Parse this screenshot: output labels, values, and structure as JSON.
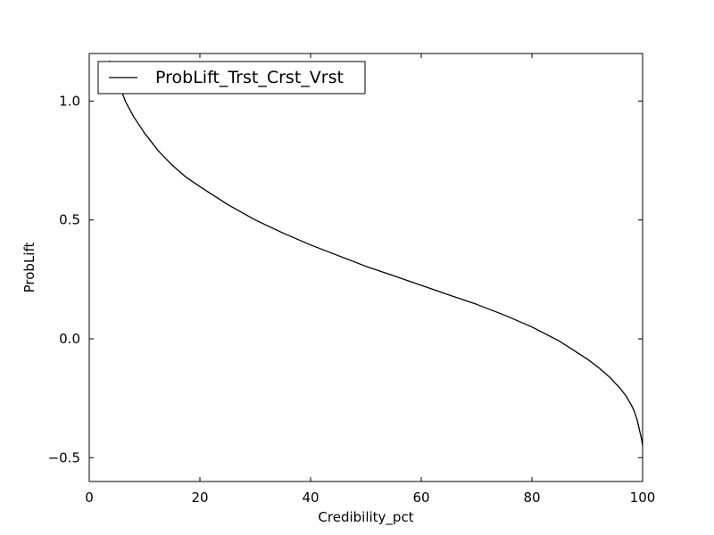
{
  "chart_data": {
    "type": "line",
    "title": "",
    "xlabel": "Credibility_pct",
    "ylabel": "ProbLift",
    "xlim": [
      0,
      100
    ],
    "ylim": [
      -0.6,
      1.2
    ],
    "xticks": [
      0,
      20,
      40,
      60,
      80,
      100
    ],
    "yticks": [
      -0.5,
      0.0,
      0.5,
      1.0
    ],
    "xtick_labels": [
      "0",
      "20",
      "40",
      "60",
      "80",
      "100"
    ],
    "ytick_labels": [
      "−0.5",
      "0.0",
      "0.5",
      "1.0"
    ],
    "grid": false,
    "legend_position": "top-left",
    "series": [
      {
        "name": "ProbLift_Trst_Crst_Vrst",
        "color": "#000000",
        "x": [
          3.7,
          4.5,
          5.5,
          6.5,
          8,
          10,
          12.5,
          15,
          17.5,
          20,
          25,
          30,
          35,
          40,
          45,
          50,
          55,
          60,
          65,
          70,
          75,
          80,
          85,
          88,
          90,
          92,
          94,
          95,
          96,
          97,
          98,
          98.5,
          99,
          99.3,
          99.6,
          99.8,
          100
        ],
        "y": [
          1.17,
          1.12,
          1.065,
          1.0,
          0.935,
          0.865,
          0.79,
          0.73,
          0.68,
          0.64,
          0.565,
          0.5,
          0.445,
          0.395,
          0.35,
          0.305,
          0.265,
          0.225,
          0.185,
          0.145,
          0.1,
          0.05,
          -0.01,
          -0.055,
          -0.085,
          -0.12,
          -0.16,
          -0.185,
          -0.21,
          -0.24,
          -0.28,
          -0.305,
          -0.34,
          -0.37,
          -0.4,
          -0.42,
          -0.45
        ]
      }
    ]
  }
}
